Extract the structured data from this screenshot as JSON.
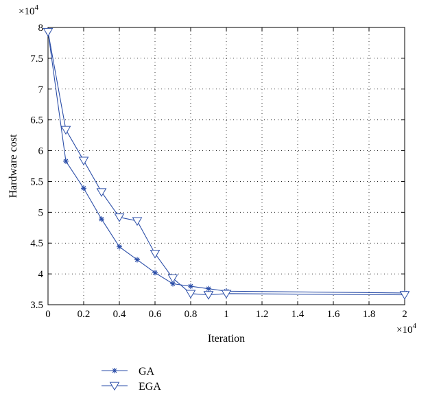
{
  "chart_data": {
    "type": "line",
    "title": "",
    "xlabel": "Iteration",
    "ylabel": "Hardware cost",
    "x_multiplier_label": "×10",
    "x_multiplier_exp": "4",
    "y_multiplier_label": "×10",
    "y_multiplier_exp": "4",
    "xlim": [
      0,
      2
    ],
    "ylim": [
      3.5,
      8
    ],
    "xticks": [
      0,
      0.2,
      0.4,
      0.6,
      0.8,
      1,
      1.2,
      1.4,
      1.6,
      1.8,
      2
    ],
    "xtick_labels": [
      "0",
      "0.2",
      "0.4",
      "0.6",
      "0.8",
      "1",
      "1.2",
      "1.4",
      "1.6",
      "1.8",
      "2"
    ],
    "yticks": [
      3.5,
      4,
      4.5,
      5,
      5.5,
      6,
      6.5,
      7,
      7.5,
      8
    ],
    "ytick_labels": [
      "3.5",
      "4",
      "4.5",
      "5",
      "5.5",
      "6",
      "6.5",
      "7",
      "7.5",
      "8"
    ],
    "grid": true,
    "legend_position": "bottom-left-outside",
    "series": [
      {
        "name": "GA",
        "marker": "star",
        "color": "#2b4ea8",
        "x": [
          0,
          0.1,
          0.2,
          0.3,
          0.4,
          0.5,
          0.6,
          0.7,
          0.8,
          0.9,
          1.0,
          2.0
        ],
        "y": [
          7.93,
          5.83,
          5.39,
          4.89,
          4.44,
          4.23,
          4.02,
          3.84,
          3.8,
          3.76,
          3.72,
          3.69
        ]
      },
      {
        "name": "EGA",
        "marker": "triangle-down",
        "color": "#2b4ea8",
        "x": [
          0,
          0.1,
          0.2,
          0.3,
          0.4,
          0.5,
          0.6,
          0.7,
          0.8,
          0.9,
          1.0,
          2.0
        ],
        "y": [
          7.93,
          6.34,
          5.84,
          5.33,
          4.92,
          4.86,
          4.33,
          3.93,
          3.68,
          3.66,
          3.68,
          3.66
        ]
      }
    ]
  }
}
